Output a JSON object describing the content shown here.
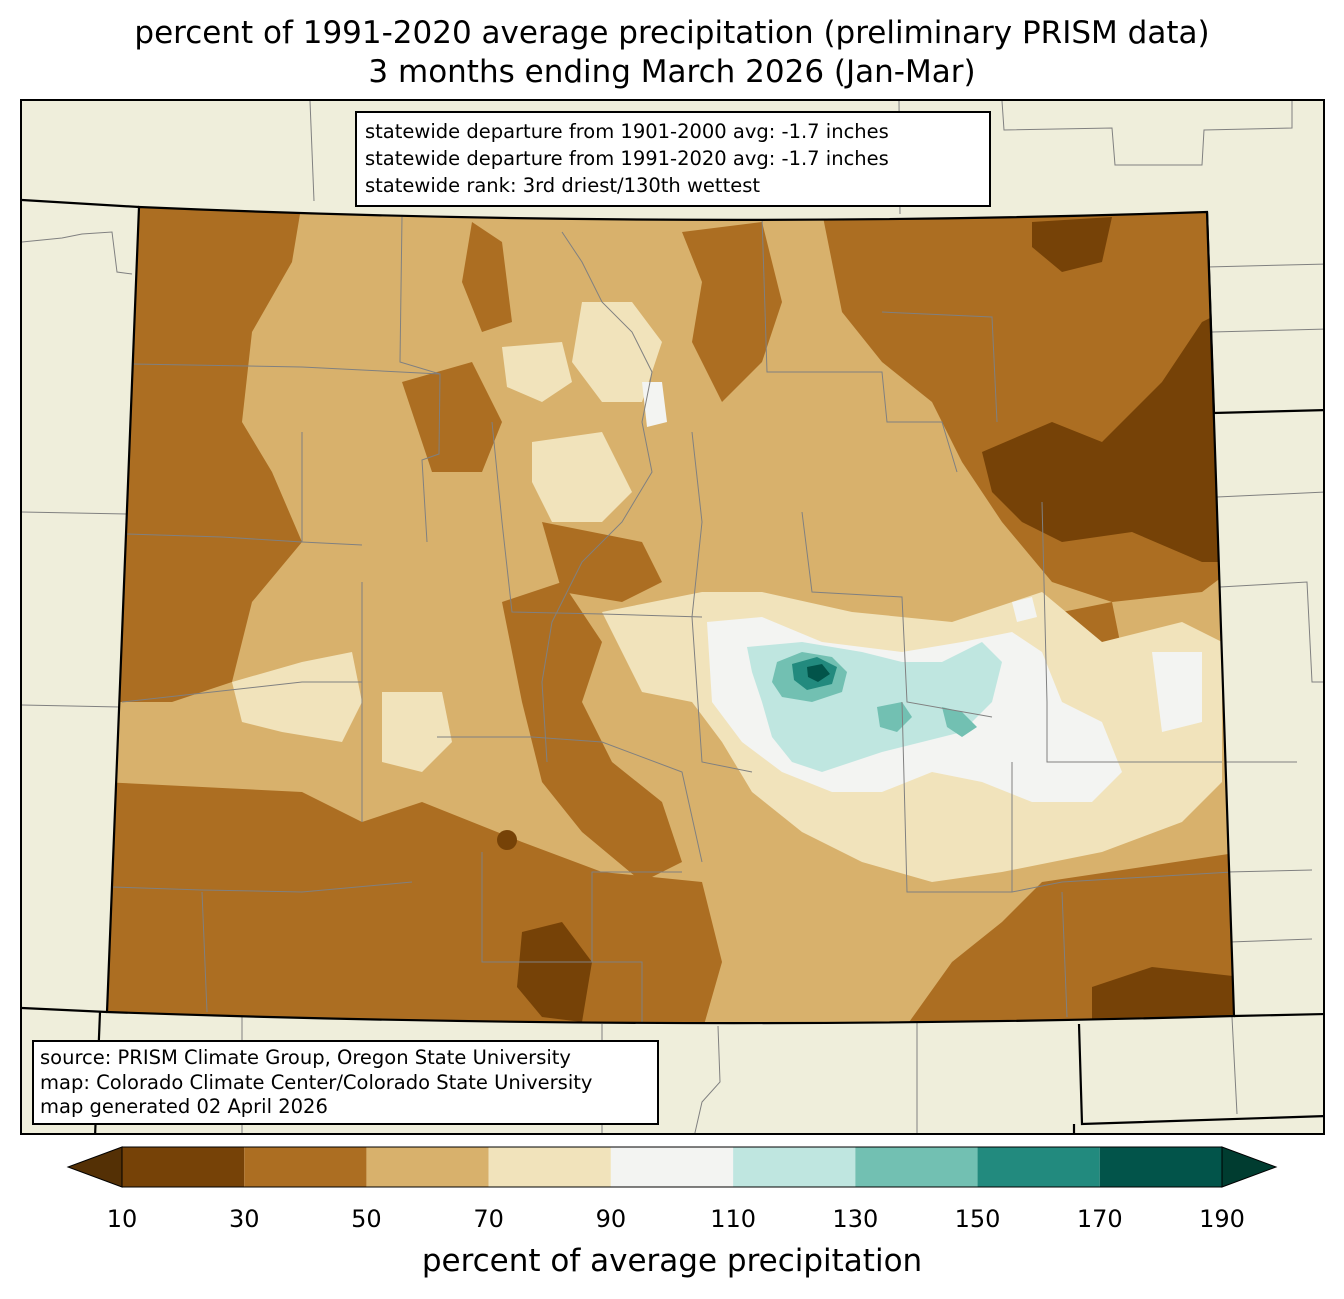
{
  "title": {
    "line1": "percent of 1991-2020 average precipitation (preliminary PRISM data)",
    "line2": "3 months ending March 2026 (Jan-Mar)"
  },
  "stats_box": {
    "line1": "statewide departure from 1901-2000 avg: -1.7 inches",
    "line2": "statewide departure from 1991-2020 avg: -1.7 inches",
    "line3": "statewide rank: 3rd driest/130th wettest"
  },
  "source_box": {
    "line1": "source: PRISM Climate Group, Oregon State University",
    "line2": "map: Colorado Climate Center/Colorado State University",
    "line3": "map generated 02 April 2026"
  },
  "colorbar": {
    "label": "percent of average precipitation",
    "ticks": [
      "10",
      "30",
      "50",
      "70",
      "90",
      "110",
      "130",
      "150",
      "170",
      "190"
    ],
    "colors": [
      "#764207",
      "#ac6e22",
      "#d8b16c",
      "#f1e3bb",
      "#f3f4f2",
      "#bfe6e0",
      "#72c0b2",
      "#228a7e",
      "#02544a"
    ],
    "under_color": "#543005",
    "over_color": "#003c30"
  },
  "map": {
    "background_color": "#efeedb",
    "state_fill_base": "#d8b16c",
    "region": "Colorado"
  }
}
